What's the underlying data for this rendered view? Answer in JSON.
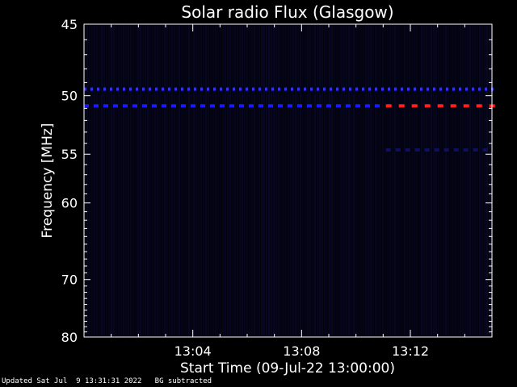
{
  "chart_data": {
    "type": "heatmap",
    "title": "Solar radio Flux (Glasgow)",
    "xlabel": "Start Time (09-Jul-22 13:00:00)",
    "ylabel": "Frequency [MHz]",
    "x_ticks": [
      "13:04",
      "13:08",
      "13:12"
    ],
    "x_tick_minutes": [
      4,
      8,
      12
    ],
    "xlim_minutes": [
      0,
      15
    ],
    "y_ticks": [
      45,
      50,
      55,
      60,
      70,
      80
    ],
    "ylim": [
      45,
      80
    ],
    "y_scale": "reciprocal",
    "grid": false,
    "bands": [
      {
        "freq": 49.5,
        "start": 0,
        "end": 15,
        "color": "#3030ff",
        "intensity": "medium"
      },
      {
        "freq": 50.8,
        "start": 0,
        "end": 10.8,
        "color": "#1a1aff",
        "intensity": "medium"
      },
      {
        "freq": 50.8,
        "start": 11.1,
        "end": 15,
        "color": "#ff2020",
        "intensity": "high"
      },
      {
        "freq": 54.6,
        "start": 11.1,
        "end": 15,
        "color": "#101060",
        "intensity": "low"
      }
    ]
  },
  "footer": {
    "updated": "Updated Sat Jul  9 13:31:31 2022",
    "note": "BG subtracted"
  },
  "colors": {
    "background": "#000000",
    "axes": "#ffffff",
    "low": "#0a0a2e"
  }
}
